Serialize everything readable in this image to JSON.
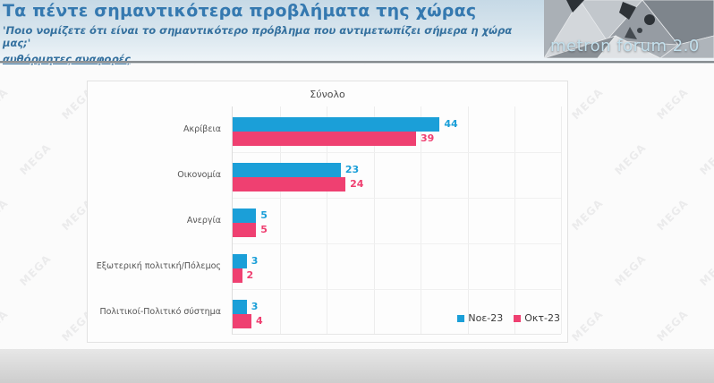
{
  "header": {
    "title": "Τα πέντε σημαντικότερα προβλήματα της χώρας",
    "subtitle": "'Ποιο νομίζετε ότι είναι το σημαντικότερο πρόβλημα που αντιμετωπίζει σήμερα η χώρα μας;'",
    "note": "αυθόρμητες αναφορές",
    "title_color": "#3579b0",
    "logo_text": "metron forum 2.0"
  },
  "watermark": {
    "text": "MEGA"
  },
  "chart_data": {
    "type": "bar",
    "orientation": "horizontal",
    "title": "Σύνολο",
    "categories": [
      "Ακρίβεια",
      "Οικονομία",
      "Ανεργία",
      "Εξωτερική πολιτική/Πόλεμος",
      "Πολιτικοί-Πολιτικό σύστημα"
    ],
    "series": [
      {
        "name": "Νοε-23",
        "color": "#1b9fd8",
        "values": [
          44,
          23,
          5,
          3,
          3
        ]
      },
      {
        "name": "Οκτ-23",
        "color": "#ef4071",
        "values": [
          39,
          24,
          5,
          2,
          4
        ]
      }
    ],
    "xlim": [
      0,
      70
    ],
    "gridline_step": 10,
    "grid": true,
    "legend_position": "bottom-right"
  }
}
